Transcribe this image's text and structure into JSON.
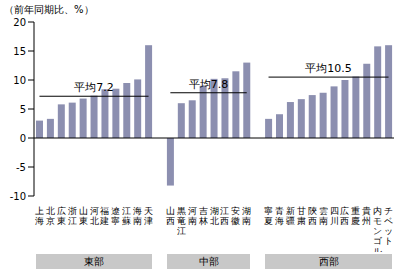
{
  "chart_data": {
    "type": "bar",
    "ylabel": "（前年同期比、%）",
    "color": "#8c8fb0",
    "ylim": [
      -10,
      20
    ],
    "yticks": [
      -10,
      -5,
      0,
      5,
      10,
      15,
      20
    ],
    "grid": false,
    "legend": false,
    "groups": [
      {
        "name": "東部",
        "categories": [
          "上海",
          "北京",
          "広東",
          "浙江",
          "山東",
          "河北",
          "福建",
          "遼寧",
          "江蘇",
          "海南",
          "天津"
        ],
        "values": [
          3.0,
          3.3,
          5.8,
          6.1,
          6.8,
          7.3,
          8.4,
          8.5,
          9.5,
          10.1,
          16.0
        ],
        "average": 7.2,
        "average_label": "平均7.2"
      },
      {
        "name": "中部",
        "categories": [
          "山西",
          "黒竜江",
          "河南",
          "吉林",
          "湖北",
          "江西",
          "安徽",
          "湖南"
        ],
        "values": [
          -8.2,
          6.0,
          6.5,
          9.0,
          10.2,
          10.3,
          11.5,
          13.0
        ],
        "average": 7.8,
        "average_label": "平均7.8"
      },
      {
        "name": "西部",
        "categories": [
          "寧夏",
          "青海",
          "新疆",
          "甘粛",
          "陝西",
          "雲南",
          "四川",
          "広西",
          "重慶",
          "貴州",
          "内モンゴル",
          "チベット"
        ],
        "values": [
          3.3,
          4.1,
          6.2,
          6.7,
          7.4,
          7.8,
          8.9,
          10.0,
          10.6,
          12.8,
          15.8,
          16.0
        ],
        "average": 10.5,
        "average_label": "平均10.5"
      }
    ]
  }
}
